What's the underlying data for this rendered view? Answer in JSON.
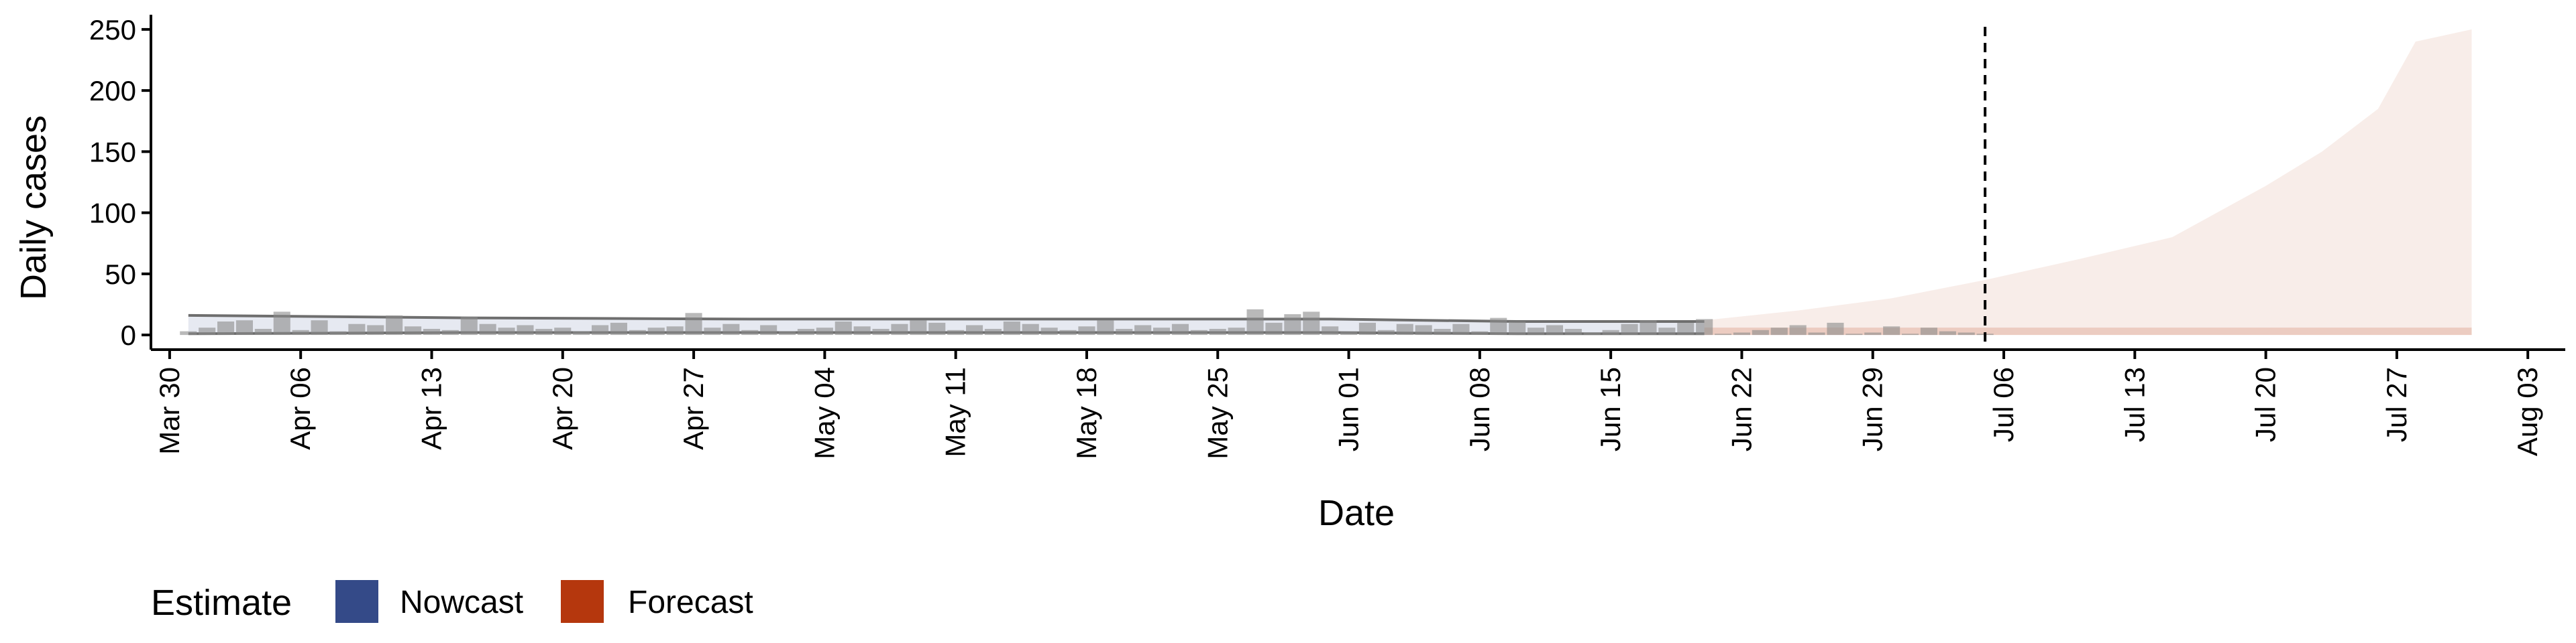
{
  "chart_data": {
    "type": "area",
    "xlabel": "Date",
    "ylabel": "Daily cases",
    "x_ticks": [
      "Mar 30",
      "Apr 06",
      "Apr 13",
      "Apr 20",
      "Apr 27",
      "May 04",
      "May 11",
      "May 18",
      "May 25",
      "Jun 01",
      "Jun 08",
      "Jun 15",
      "Jun 22",
      "Jun 29",
      "Jul 06",
      "Jul 13",
      "Jul 20",
      "Jul 27",
      "Aug 03"
    ],
    "x_tick_dates": [
      "2020-03-30",
      "2020-04-06",
      "2020-04-13",
      "2020-04-20",
      "2020-04-27",
      "2020-05-04",
      "2020-05-11",
      "2020-05-18",
      "2020-05-25",
      "2020-06-01",
      "2020-06-08",
      "2020-06-15",
      "2020-06-22",
      "2020-06-29",
      "2020-07-06",
      "2020-07-13",
      "2020-07-20",
      "2020-07-27",
      "2020-08-03"
    ],
    "xlim": [
      "2020-03-29",
      "2020-08-05"
    ],
    "y_ticks": [
      0,
      50,
      100,
      150,
      200,
      250
    ],
    "ylim": [
      -12,
      262
    ],
    "grid": false,
    "legend": {
      "title": "Estimate",
      "position": "bottom-left",
      "entries": [
        {
          "label": "Nowcast",
          "color": "#344A88"
        },
        {
          "label": "Forecast",
          "color": "#B5370D"
        }
      ]
    },
    "cutoff_date": "2020-07-05",
    "reported_cases": [
      {
        "date": "2020-03-31",
        "value": 3
      },
      {
        "date": "2020-04-01",
        "value": 6
      },
      {
        "date": "2020-04-02",
        "value": 11
      },
      {
        "date": "2020-04-03",
        "value": 12
      },
      {
        "date": "2020-04-04",
        "value": 5
      },
      {
        "date": "2020-04-05",
        "value": 19
      },
      {
        "date": "2020-04-06",
        "value": 4
      },
      {
        "date": "2020-04-07",
        "value": 12
      },
      {
        "date": "2020-04-08",
        "value": 3
      },
      {
        "date": "2020-04-09",
        "value": 9
      },
      {
        "date": "2020-04-10",
        "value": 8
      },
      {
        "date": "2020-04-11",
        "value": 16
      },
      {
        "date": "2020-04-12",
        "value": 7
      },
      {
        "date": "2020-04-13",
        "value": 5
      },
      {
        "date": "2020-04-14",
        "value": 4
      },
      {
        "date": "2020-04-15",
        "value": 15
      },
      {
        "date": "2020-04-16",
        "value": 9
      },
      {
        "date": "2020-04-17",
        "value": 6
      },
      {
        "date": "2020-04-18",
        "value": 8
      },
      {
        "date": "2020-04-19",
        "value": 5
      },
      {
        "date": "2020-04-20",
        "value": 6
      },
      {
        "date": "2020-04-21",
        "value": 3
      },
      {
        "date": "2020-04-22",
        "value": 8
      },
      {
        "date": "2020-04-23",
        "value": 10
      },
      {
        "date": "2020-04-24",
        "value": 4
      },
      {
        "date": "2020-04-25",
        "value": 6
      },
      {
        "date": "2020-04-26",
        "value": 7
      },
      {
        "date": "2020-04-27",
        "value": 18
      },
      {
        "date": "2020-04-28",
        "value": 6
      },
      {
        "date": "2020-04-29",
        "value": 9
      },
      {
        "date": "2020-04-30",
        "value": 4
      },
      {
        "date": "2020-05-01",
        "value": 8
      },
      {
        "date": "2020-05-02",
        "value": 3
      },
      {
        "date": "2020-05-03",
        "value": 5
      },
      {
        "date": "2020-05-04",
        "value": 6
      },
      {
        "date": "2020-05-05",
        "value": 11
      },
      {
        "date": "2020-05-06",
        "value": 7
      },
      {
        "date": "2020-05-07",
        "value": 5
      },
      {
        "date": "2020-05-08",
        "value": 9
      },
      {
        "date": "2020-05-09",
        "value": 12
      },
      {
        "date": "2020-05-10",
        "value": 10
      },
      {
        "date": "2020-05-11",
        "value": 4
      },
      {
        "date": "2020-05-12",
        "value": 8
      },
      {
        "date": "2020-05-13",
        "value": 5
      },
      {
        "date": "2020-05-14",
        "value": 11
      },
      {
        "date": "2020-05-15",
        "value": 9
      },
      {
        "date": "2020-05-16",
        "value": 6
      },
      {
        "date": "2020-05-17",
        "value": 4
      },
      {
        "date": "2020-05-18",
        "value": 7
      },
      {
        "date": "2020-05-19",
        "value": 12
      },
      {
        "date": "2020-05-20",
        "value": 5
      },
      {
        "date": "2020-05-21",
        "value": 8
      },
      {
        "date": "2020-05-22",
        "value": 6
      },
      {
        "date": "2020-05-23",
        "value": 9
      },
      {
        "date": "2020-05-24",
        "value": 4
      },
      {
        "date": "2020-05-25",
        "value": 5
      },
      {
        "date": "2020-05-26",
        "value": 6
      },
      {
        "date": "2020-05-27",
        "value": 21
      },
      {
        "date": "2020-05-28",
        "value": 10
      },
      {
        "date": "2020-05-29",
        "value": 17
      },
      {
        "date": "2020-05-30",
        "value": 19
      },
      {
        "date": "2020-05-31",
        "value": 7
      },
      {
        "date": "2020-06-01",
        "value": 3
      },
      {
        "date": "2020-06-02",
        "value": 10
      },
      {
        "date": "2020-06-03",
        "value": 4
      },
      {
        "date": "2020-06-04",
        "value": 9
      },
      {
        "date": "2020-06-05",
        "value": 8
      },
      {
        "date": "2020-06-06",
        "value": 5
      },
      {
        "date": "2020-06-07",
        "value": 9
      },
      {
        "date": "2020-06-08",
        "value": 3
      },
      {
        "date": "2020-06-09",
        "value": 14
      },
      {
        "date": "2020-06-10",
        "value": 11
      },
      {
        "date": "2020-06-11",
        "value": 6
      },
      {
        "date": "2020-06-12",
        "value": 8
      },
      {
        "date": "2020-06-13",
        "value": 5
      },
      {
        "date": "2020-06-14",
        "value": 2
      },
      {
        "date": "2020-06-15",
        "value": 4
      },
      {
        "date": "2020-06-16",
        "value": 9
      },
      {
        "date": "2020-06-17",
        "value": 12
      },
      {
        "date": "2020-06-18",
        "value": 6
      },
      {
        "date": "2020-06-19",
        "value": 10
      },
      {
        "date": "2020-06-20",
        "value": 13
      },
      {
        "date": "2020-06-21",
        "value": 1
      },
      {
        "date": "2020-06-22",
        "value": 2
      },
      {
        "date": "2020-06-23",
        "value": 4
      },
      {
        "date": "2020-06-24",
        "value": 6
      },
      {
        "date": "2020-06-25",
        "value": 8
      },
      {
        "date": "2020-06-26",
        "value": 2
      },
      {
        "date": "2020-06-27",
        "value": 10
      },
      {
        "date": "2020-06-28",
        "value": 1
      },
      {
        "date": "2020-06-29",
        "value": 2
      },
      {
        "date": "2020-06-30",
        "value": 7
      },
      {
        "date": "2020-07-01",
        "value": 1
      },
      {
        "date": "2020-07-02",
        "value": 6
      },
      {
        "date": "2020-07-03",
        "value": 3
      },
      {
        "date": "2020-07-04",
        "value": 2
      },
      {
        "date": "2020-07-05",
        "value": 1
      }
    ],
    "nowcast_band": [
      {
        "date": "2020-03-31",
        "lower": 1,
        "upper": 16
      },
      {
        "date": "2020-04-15",
        "lower": 2,
        "upper": 14
      },
      {
        "date": "2020-04-30",
        "lower": 2,
        "upper": 13
      },
      {
        "date": "2020-05-15",
        "lower": 2,
        "upper": 13
      },
      {
        "date": "2020-05-31",
        "lower": 2,
        "upper": 13
      },
      {
        "date": "2020-06-10",
        "lower": 1,
        "upper": 11
      },
      {
        "date": "2020-06-20",
        "lower": 1,
        "upper": 11
      }
    ],
    "forecast_band": [
      {
        "date": "2020-06-20",
        "lower": 0,
        "upper": 12
      },
      {
        "date": "2020-06-25",
        "lower": 0,
        "upper": 20
      },
      {
        "date": "2020-06-30",
        "lower": 0,
        "upper": 30
      },
      {
        "date": "2020-07-05",
        "lower": 0,
        "upper": 45
      },
      {
        "date": "2020-07-10",
        "lower": 0,
        "upper": 62
      },
      {
        "date": "2020-07-15",
        "lower": 0,
        "upper": 80
      },
      {
        "date": "2020-07-20",
        "lower": 0,
        "upper": 122
      },
      {
        "date": "2020-07-23",
        "lower": 0,
        "upper": 150
      },
      {
        "date": "2020-07-26",
        "lower": 0,
        "upper": 185
      },
      {
        "date": "2020-07-28",
        "lower": 0,
        "upper": 240
      },
      {
        "date": "2020-07-31",
        "lower": 0,
        "upper": 250
      }
    ]
  }
}
